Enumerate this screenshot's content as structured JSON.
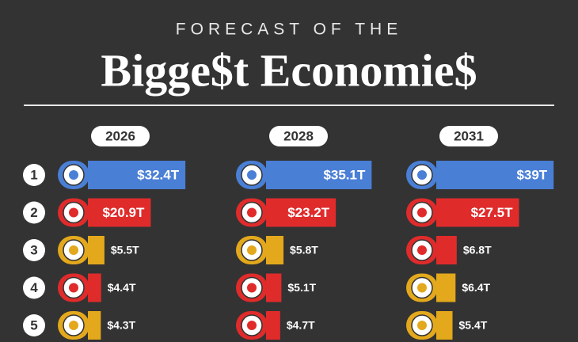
{
  "title": "FORECAST OF THE",
  "subtitle": "Bigge$t Economie$",
  "ranks": [
    "1",
    "2",
    "3",
    "4",
    "5"
  ],
  "chart_data": [
    {
      "type": "bar",
      "title": "2026",
      "values": [
        32.4,
        20.9,
        5.5,
        4.4,
        4.3
      ],
      "value_labels": [
        "$32.4T",
        "$20.9T",
        "$5.5T",
        "$4.4T",
        "$4.3T"
      ],
      "colors": [
        "#4a7fd6",
        "#e02b2b",
        "#e3a81c",
        "#e02b2b",
        "#e3a81c"
      ]
    },
    {
      "type": "bar",
      "title": "2028",
      "values": [
        35.1,
        23.2,
        5.8,
        5.1,
        4.7
      ],
      "value_labels": [
        "$35.1T",
        "$23.2T",
        "$5.8T",
        "$5.1T",
        "$4.7T"
      ],
      "colors": [
        "#4a7fd6",
        "#e02b2b",
        "#e3a81c",
        "#e02b2b",
        "#e02b2b"
      ]
    },
    {
      "type": "bar",
      "title": "2031",
      "values": [
        39,
        27.5,
        6.8,
        6.4,
        5.4
      ],
      "value_labels": [
        "$39T",
        "$27.5T",
        "$6.8T",
        "$6.4T",
        "$5.4T"
      ],
      "colors": [
        "#4a7fd6",
        "#e02b2b",
        "#e02b2b",
        "#e3a81c",
        "#e3a81c"
      ]
    }
  ]
}
